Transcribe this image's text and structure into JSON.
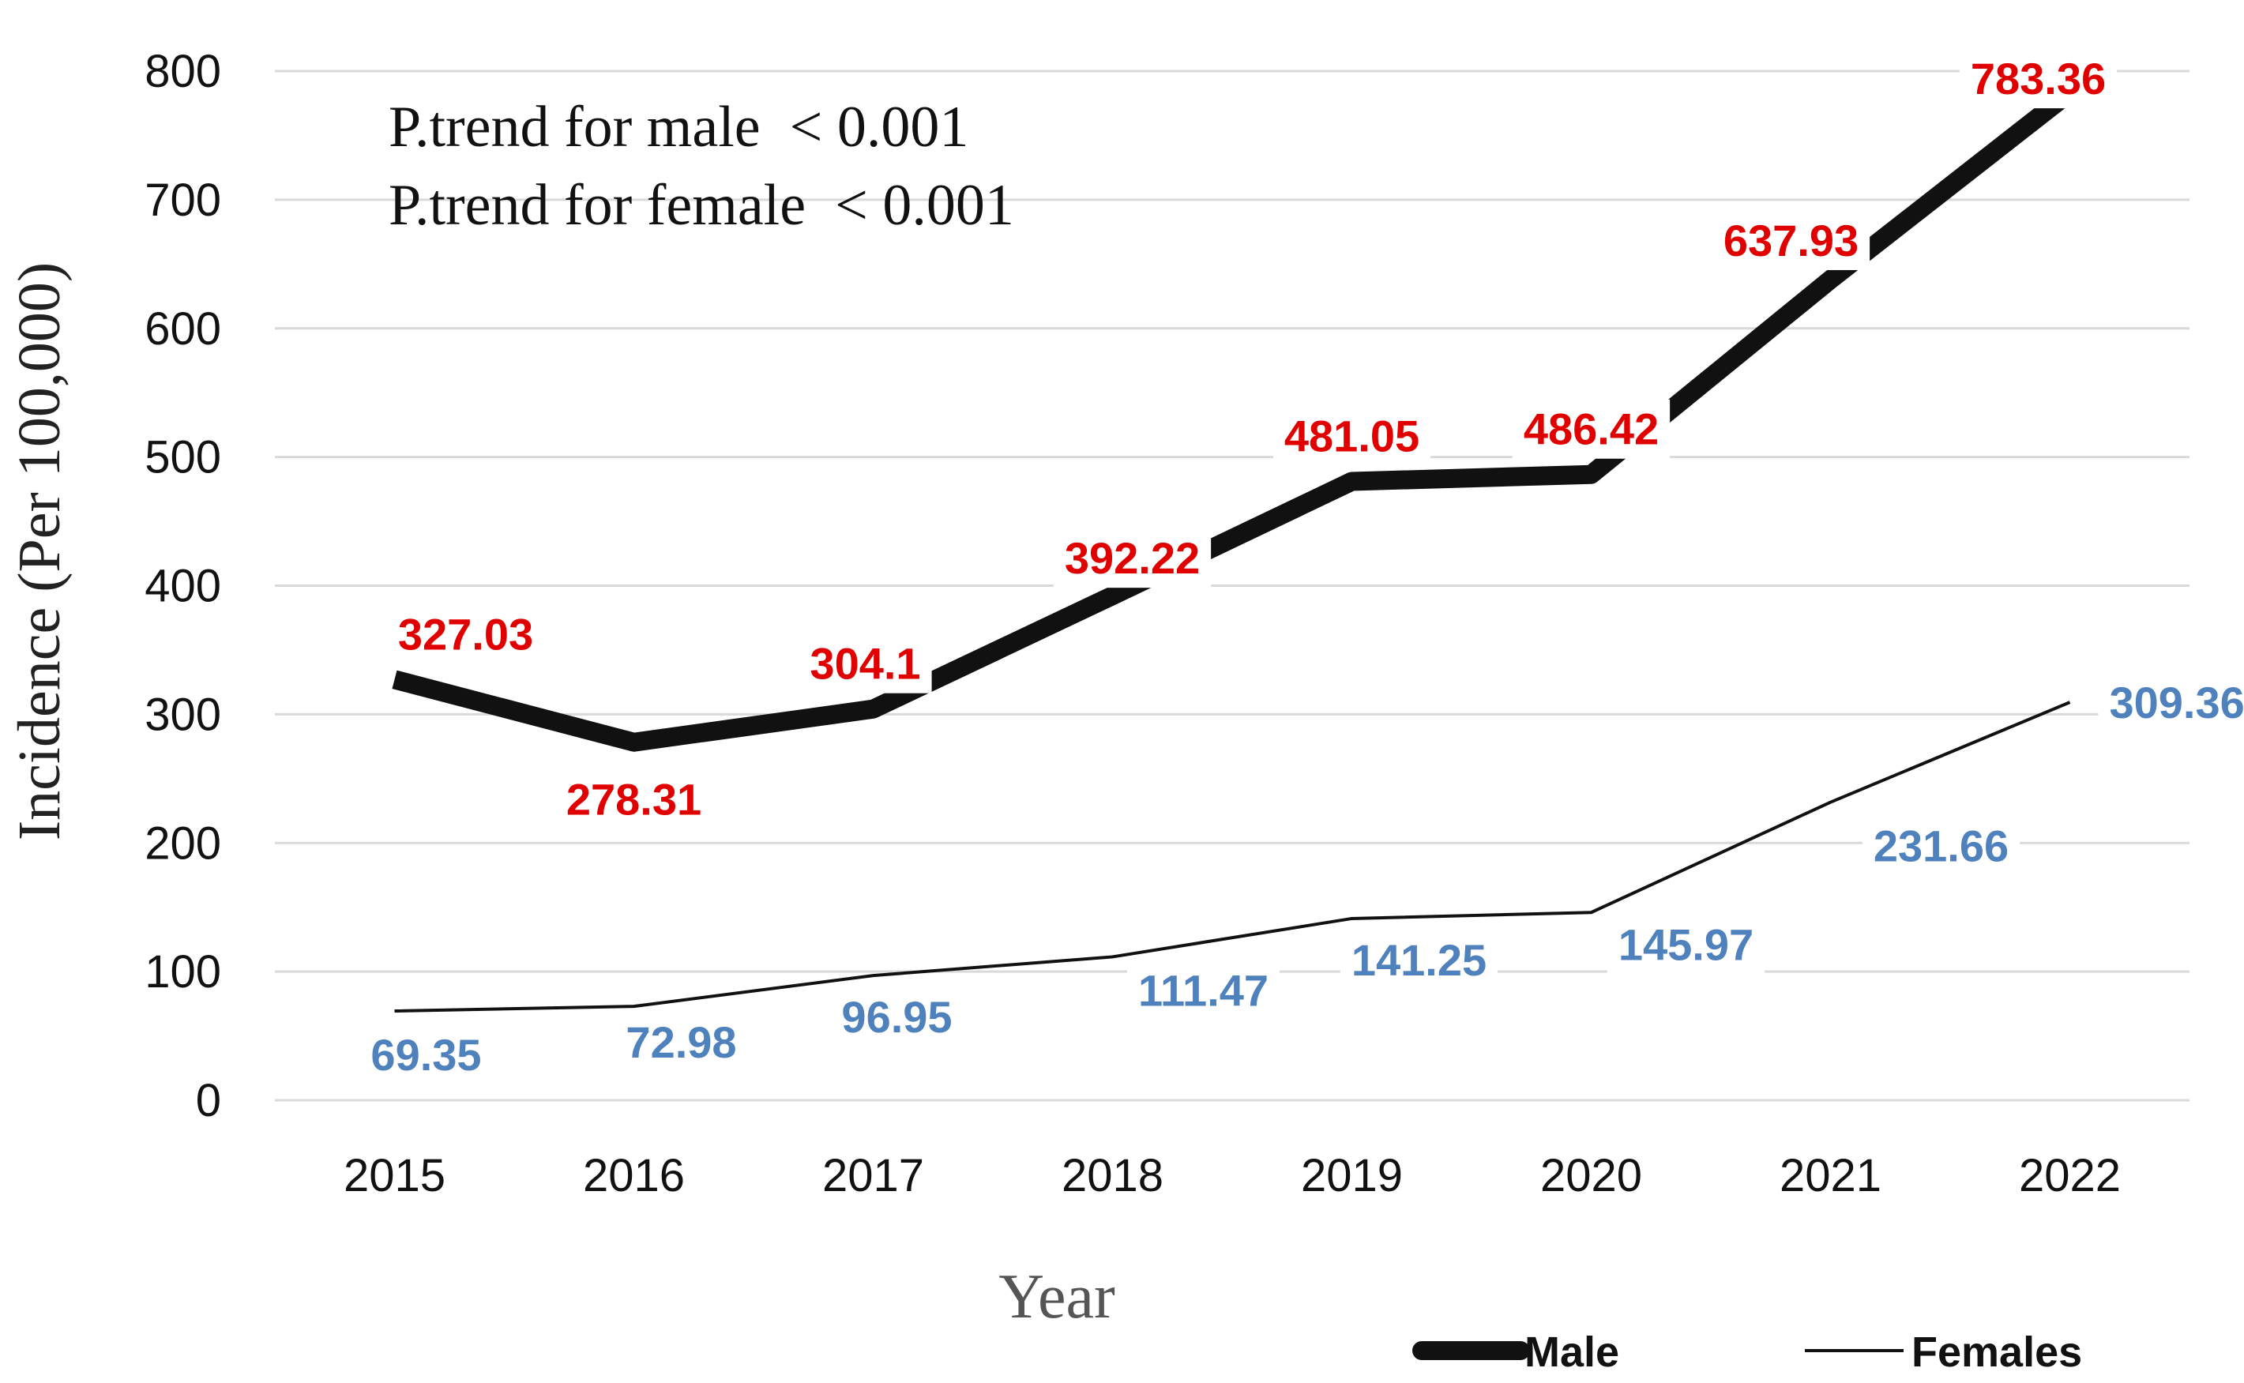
{
  "chart_data": {
    "type": "line",
    "categories": [
      "2015",
      "2016",
      "2017",
      "2018",
      "2019",
      "2020",
      "2021",
      "2022"
    ],
    "series": [
      {
        "name": "Male",
        "values": [
          327.03,
          278.31,
          304.1,
          392.22,
          481.05,
          486.42,
          637.93,
          783.36
        ],
        "labels": [
          "327.03",
          "278.31",
          "304.1",
          "392.22",
          "481.05",
          "486.42",
          "637.93",
          "783.36"
        ],
        "color": "#111111",
        "label_color": "#e00000"
      },
      {
        "name": "Females",
        "values": [
          69.35,
          72.98,
          96.95,
          111.47,
          141.25,
          145.97,
          231.66,
          309.36
        ],
        "labels": [
          "69.35",
          "72.98",
          "96.95",
          "111.47",
          "141.25",
          "145.97",
          "231.66",
          "309.36"
        ],
        "color": "#111111",
        "label_color": "#4f81bd"
      }
    ],
    "xlabel": "Year",
    "ylabel": "Incidence (Per 100,000)",
    "ylim": [
      0,
      800
    ],
    "yticks": [
      "0",
      "100",
      "200",
      "300",
      "400",
      "500",
      "600",
      "700",
      "800"
    ],
    "grid": true,
    "legend_position": "bottom-right",
    "annotations": [
      "P.trend for male  < 0.001",
      "P.trend for female  < 0.001"
    ]
  }
}
